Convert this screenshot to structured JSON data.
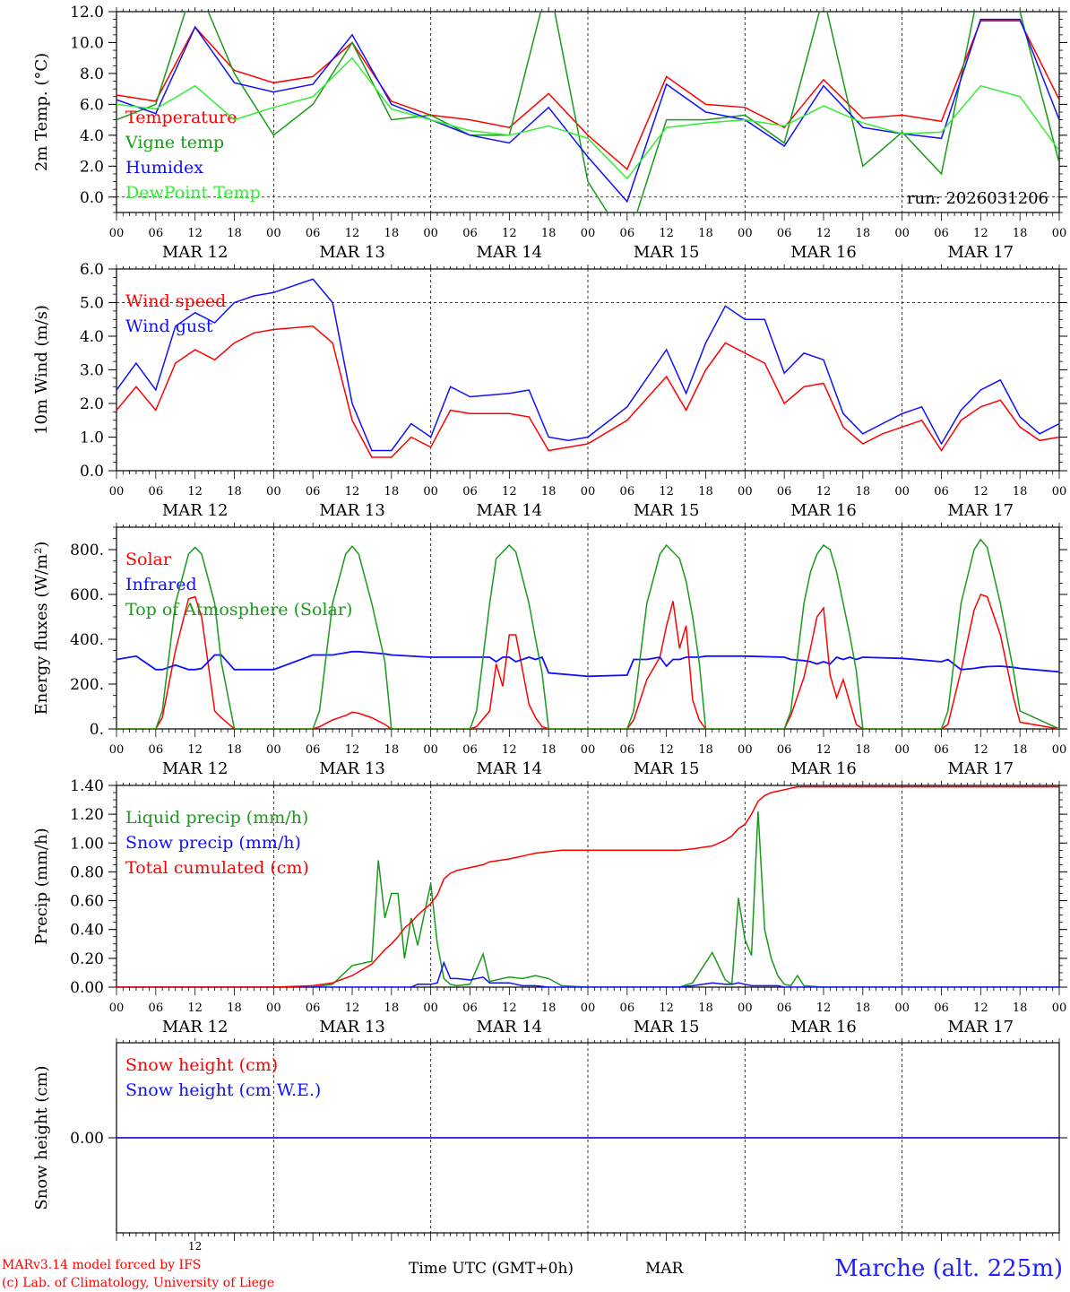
{
  "meta": {
    "model_line": "MARv3.14 model forced by IFS",
    "credit_line": "(c) Lab. of Climatology, University of Liege",
    "time_axis_label": "Time UTC (GMT+0h)",
    "month_label": "MAR",
    "small_tick": "12",
    "station": "Marche (alt. 225m)",
    "colors": {
      "red": "#ff0000",
      "green": "#1a9a1a",
      "blue": "#1010ff",
      "light_green": "#33ee33",
      "grid": "#000000"
    }
  },
  "chart_data": [
    {
      "id": "temp",
      "type": "line",
      "ylabel": "2m Temp. (°C)",
      "ylim": [
        -1.0,
        12.0
      ],
      "yticks": [
        0.0,
        2.0,
        4.0,
        6.0,
        8.0,
        10.0,
        12.0
      ],
      "tick_decimals": 1,
      "dashed_y": [
        0.0
      ],
      "annotation": "run: 2026031206",
      "x": [
        0,
        6,
        12,
        18,
        24,
        30,
        36,
        42,
        48,
        54,
        60,
        66,
        72,
        78,
        84,
        90,
        96,
        102,
        108,
        114,
        120,
        126,
        132,
        138,
        144
      ],
      "series": [
        {
          "name": "Temperature",
          "color": "red",
          "values": [
            6.6,
            6.2,
            11.0,
            8.2,
            7.4,
            7.8,
            10.0,
            6.2,
            5.3,
            5.0,
            4.5,
            6.7,
            4.0,
            1.8,
            7.8,
            6.0,
            5.8,
            4.5,
            7.6,
            5.1,
            5.3,
            4.9,
            11.4,
            11.4,
            6.3
          ]
        },
        {
          "name": "Vigne temp",
          "color": "green",
          "values": [
            5.0,
            6.0,
            14.0,
            8.0,
            4.0,
            6.0,
            10.0,
            5.0,
            5.3,
            4.0,
            4.0,
            14.0,
            1.0,
            -3.0,
            5.0,
            5.0,
            5.3,
            3.5,
            13.0,
            2.0,
            4.2,
            1.5,
            14.0,
            12.0,
            2.2
          ]
        },
        {
          "name": "Humidex",
          "color": "blue",
          "values": [
            6.3,
            5.4,
            11.0,
            7.4,
            6.8,
            7.3,
            10.5,
            6.0,
            5.0,
            4.0,
            3.5,
            5.8,
            2.6,
            -0.3,
            7.3,
            5.5,
            5.0,
            3.3,
            7.2,
            4.5,
            4.1,
            3.8,
            11.5,
            11.5,
            5.0
          ]
        },
        {
          "name": "DewPoint Temp",
          "color": "light_green",
          "values": [
            6.0,
            5.7,
            7.2,
            5.0,
            5.8,
            6.5,
            9.0,
            5.7,
            5.0,
            4.3,
            4.0,
            4.6,
            3.8,
            1.2,
            4.5,
            4.8,
            5.0,
            4.6,
            5.9,
            4.8,
            4.1,
            4.2,
            7.2,
            6.5,
            3.0
          ]
        }
      ]
    },
    {
      "id": "wind",
      "type": "line",
      "ylabel": "10m Wind (m/s)",
      "ylim": [
        0.0,
        6.0
      ],
      "yticks": [
        0.0,
        1.0,
        2.0,
        3.0,
        4.0,
        5.0,
        6.0
      ],
      "tick_decimals": 1,
      "dashed_y": [
        5.0
      ],
      "x": [
        0,
        3,
        6,
        9,
        12,
        15,
        18,
        21,
        24,
        30,
        33,
        36,
        39,
        42,
        45,
        48,
        51,
        54,
        60,
        63,
        66,
        69,
        72,
        78,
        84,
        87,
        90,
        93,
        96,
        99,
        102,
        105,
        108,
        111,
        114,
        117,
        120,
        123,
        126,
        129,
        132,
        135,
        138,
        141,
        144
      ],
      "series": [
        {
          "name": "Wind speed",
          "color": "red",
          "values": [
            1.8,
            2.5,
            1.8,
            3.2,
            3.6,
            3.3,
            3.8,
            4.1,
            4.2,
            4.3,
            3.8,
            1.5,
            0.4,
            0.4,
            1.0,
            0.7,
            1.8,
            1.7,
            1.7,
            1.6,
            0.6,
            0.7,
            0.8,
            1.5,
            2.8,
            1.8,
            3.0,
            3.8,
            3.5,
            3.2,
            2.0,
            2.5,
            2.6,
            1.3,
            0.8,
            1.1,
            1.3,
            1.5,
            0.6,
            1.5,
            1.9,
            2.1,
            1.3,
            0.9,
            1.0
          ]
        },
        {
          "name": "Wind gust",
          "color": "blue",
          "values": [
            2.4,
            3.2,
            2.4,
            4.3,
            4.7,
            4.4,
            5.0,
            5.2,
            5.3,
            5.7,
            5.0,
            2.0,
            0.6,
            0.6,
            1.4,
            1.0,
            2.5,
            2.2,
            2.3,
            2.4,
            1.0,
            0.9,
            1.0,
            1.9,
            3.6,
            2.3,
            3.8,
            4.9,
            4.5,
            4.5,
            2.9,
            3.5,
            3.3,
            1.7,
            1.1,
            1.4,
            1.7,
            1.9,
            0.8,
            1.8,
            2.4,
            2.7,
            1.6,
            1.1,
            1.4
          ]
        }
      ]
    },
    {
      "id": "energy",
      "type": "line",
      "ylabel": "Energy fluxes (W/m²)",
      "ylim": [
        0,
        900
      ],
      "yticks": [
        0,
        200,
        400,
        600,
        800
      ],
      "tick_decimals": 0,
      "tick_suffix": ".",
      "dashed_y": [],
      "x": [
        0,
        3,
        6,
        7,
        9,
        11,
        12,
        13,
        15,
        16,
        18,
        24,
        30,
        31,
        33,
        35,
        36,
        37,
        39,
        41,
        42,
        48,
        54,
        55,
        57,
        58,
        59,
        60,
        61,
        63,
        64,
        65,
        66,
        72,
        78,
        79,
        81,
        83,
        84,
        85,
        86,
        87,
        88,
        89,
        90,
        96,
        102,
        103,
        105,
        106,
        107,
        108,
        109,
        110,
        111,
        112,
        113,
        114,
        120,
        126,
        127,
        129,
        131,
        132,
        133,
        135,
        137,
        138,
        144
      ],
      "series": [
        {
          "name": "Solar",
          "color": "red",
          "values": [
            0,
            0,
            0,
            50,
            350,
            580,
            590,
            500,
            80,
            50,
            0,
            0,
            0,
            10,
            40,
            60,
            75,
            70,
            50,
            20,
            0,
            0,
            0,
            10,
            80,
            290,
            190,
            420,
            420,
            110,
            50,
            10,
            0,
            0,
            0,
            40,
            220,
            320,
            460,
            570,
            360,
            460,
            130,
            40,
            0,
            0,
            0,
            60,
            230,
            360,
            500,
            540,
            240,
            140,
            220,
            120,
            20,
            0,
            0,
            0,
            20,
            260,
            530,
            600,
            590,
            420,
            140,
            30,
            0
          ]
        },
        {
          "name": "Infrared",
          "color": "blue",
          "values": [
            310,
            325,
            265,
            265,
            285,
            265,
            265,
            270,
            330,
            330,
            265,
            265,
            330,
            330,
            330,
            340,
            345,
            345,
            340,
            335,
            330,
            320,
            320,
            320,
            320,
            300,
            320,
            320,
            300,
            320,
            310,
            320,
            250,
            235,
            240,
            310,
            310,
            320,
            280,
            310,
            310,
            320,
            320,
            320,
            325,
            325,
            320,
            310,
            305,
            300,
            290,
            300,
            290,
            320,
            310,
            320,
            310,
            320,
            315,
            300,
            310,
            265,
            270,
            275,
            278,
            280,
            275,
            270,
            255
          ]
        },
        {
          "name": "Top of Atmosphere (Solar)",
          "color": "green",
          "values": [
            0,
            0,
            0,
            80,
            560,
            780,
            810,
            780,
            560,
            300,
            0,
            0,
            0,
            80,
            560,
            780,
            815,
            780,
            560,
            300,
            0,
            0,
            0,
            80,
            560,
            760,
            790,
            820,
            790,
            560,
            400,
            250,
            0,
            0,
            0,
            80,
            560,
            780,
            820,
            790,
            760,
            660,
            500,
            300,
            0,
            0,
            0,
            80,
            560,
            700,
            780,
            820,
            800,
            700,
            560,
            420,
            260,
            0,
            0,
            0,
            80,
            560,
            800,
            845,
            810,
            560,
            260,
            80,
            0
          ]
        }
      ]
    },
    {
      "id": "precip",
      "type": "line",
      "ylabel": "Precip (mm/h)",
      "ylim": [
        0.0,
        1.4
      ],
      "yticks": [
        0.0,
        0.2,
        0.4,
        0.6,
        0.8,
        1.0,
        1.2,
        1.4
      ],
      "tick_decimals": 2,
      "dashed_y": [],
      "x": [
        0,
        12,
        24,
        30,
        33,
        36,
        39,
        40,
        41,
        42,
        43,
        44,
        45,
        46,
        48,
        49,
        50,
        51,
        52,
        54,
        56,
        57,
        60,
        62,
        64,
        66,
        68,
        72,
        84,
        86,
        88,
        91,
        93,
        94,
        95,
        96,
        97,
        98,
        99,
        100,
        101,
        102,
        103,
        104,
        105,
        108,
        114,
        144
      ],
      "series": [
        {
          "name": "Liquid precip (mm/h)",
          "color": "green",
          "values": [
            0,
            0,
            0,
            0,
            0.02,
            0.15,
            0.18,
            0.88,
            0.48,
            0.65,
            0.65,
            0.2,
            0.48,
            0.29,
            0.72,
            0.3,
            0.06,
            0.02,
            0.01,
            0.02,
            0.23,
            0.04,
            0.07,
            0.06,
            0.08,
            0.06,
            0.01,
            0,
            0,
            0,
            0.03,
            0.24,
            0.05,
            0.02,
            0.62,
            0.33,
            0.22,
            1.22,
            0.4,
            0.2,
            0.08,
            0.02,
            0.01,
            0.08,
            0.01,
            0,
            0,
            0
          ]
        },
        {
          "name": "Snow precip (mm/h)",
          "color": "blue",
          "values": [
            0,
            0,
            0,
            0,
            0,
            0,
            0,
            0,
            0,
            0,
            0,
            0,
            0,
            0.02,
            0.02,
            0.03,
            0.17,
            0.06,
            0.06,
            0.05,
            0.07,
            0.03,
            0.03,
            0.01,
            0.01,
            0,
            0,
            0,
            0,
            0,
            0.01,
            0.03,
            0.02,
            0.02,
            0.03,
            0.02,
            0.01,
            0.01,
            0.01,
            0.01,
            0.01,
            0,
            0,
            0,
            0,
            0,
            0,
            0
          ]
        },
        {
          "name": "Total cumulated (cm)",
          "color": "red",
          "values": [
            0,
            0,
            0,
            0.01,
            0.03,
            0.08,
            0.16,
            0.21,
            0.26,
            0.3,
            0.35,
            0.41,
            0.45,
            0.5,
            0.58,
            0.64,
            0.75,
            0.79,
            0.81,
            0.83,
            0.85,
            0.87,
            0.89,
            0.91,
            0.93,
            0.94,
            0.95,
            0.95,
            0.95,
            0.95,
            0.96,
            0.98,
            1.02,
            1.05,
            1.1,
            1.13,
            1.2,
            1.29,
            1.33,
            1.35,
            1.36,
            1.37,
            1.38,
            1.39,
            1.39,
            1.39,
            1.39,
            1.39
          ]
        }
      ]
    },
    {
      "id": "snow",
      "type": "line",
      "ylabel": "Snow height (cm)",
      "ylim": [
        -1.0,
        1.0
      ],
      "yticks": [
        0.0
      ],
      "tick_decimals": 2,
      "dashed_y": [],
      "x": [
        0,
        144
      ],
      "series": [
        {
          "name": "Snow height (cm)",
          "color": "red",
          "values": [
            0,
            0
          ]
        },
        {
          "name": "Snow height (cm W.E.)",
          "color": "blue",
          "values": [
            0,
            0
          ]
        }
      ]
    }
  ],
  "x_axis": {
    "range_hours": [
      0,
      144
    ],
    "hour_labels": [
      "00",
      "06",
      "12",
      "18"
    ],
    "day_labels": [
      "MAR 12",
      "MAR 13",
      "MAR 14",
      "MAR 15",
      "MAR 16",
      "MAR 17"
    ]
  }
}
